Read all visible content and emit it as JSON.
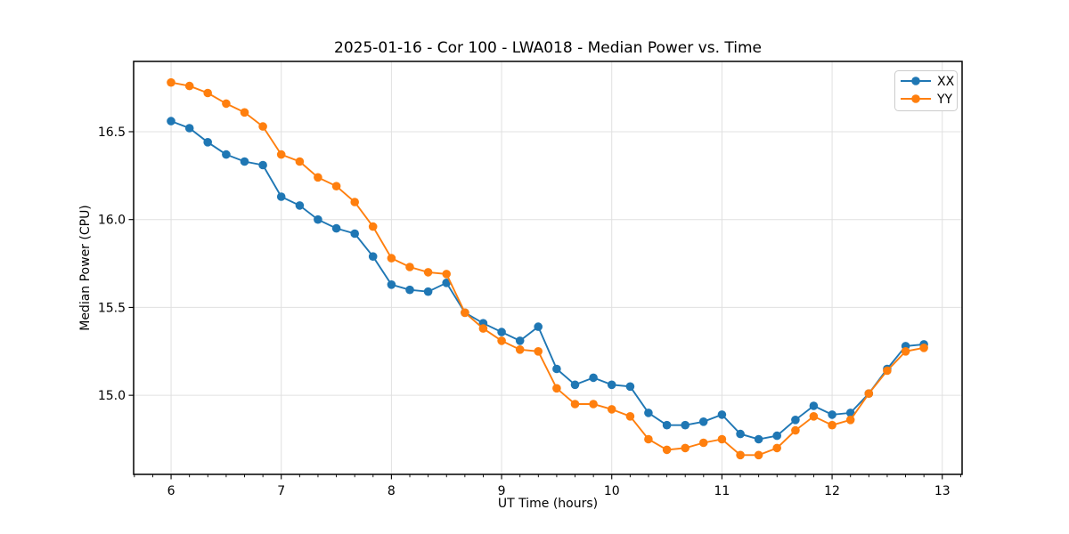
{
  "chart_data": {
    "type": "line",
    "title": "2025-01-16 - Cor 100 - LWA018 - Median Power vs. Time",
    "xlabel": "UT Time (hours)",
    "ylabel": "Median Power (CPU)",
    "xlim": [
      5.66,
      13.18
    ],
    "ylim": [
      14.55,
      16.9
    ],
    "xticks": [
      6,
      7,
      8,
      9,
      10,
      11,
      12,
      13
    ],
    "xtick_labels": [
      "6",
      "7",
      "8",
      "9",
      "10",
      "11",
      "12",
      "13"
    ],
    "yticks": [
      15.0,
      15.5,
      16.0,
      16.5
    ],
    "ytick_labels": [
      "15.0",
      "15.5",
      "16.0",
      "16.5"
    ],
    "grid": true,
    "minor_tick_interval_x": 0.16667,
    "legend_position": "upper right",
    "x": [
      6.0,
      6.167,
      6.333,
      6.5,
      6.667,
      6.833,
      7.0,
      7.167,
      7.333,
      7.5,
      7.667,
      7.833,
      8.0,
      8.167,
      8.333,
      8.5,
      8.667,
      8.833,
      9.0,
      9.167,
      9.333,
      9.5,
      9.667,
      9.833,
      10.0,
      10.167,
      10.333,
      10.5,
      10.667,
      10.833,
      11.0,
      11.167,
      11.333,
      11.5,
      11.667,
      11.833,
      12.0,
      12.167,
      12.333,
      12.5,
      12.667,
      12.833
    ],
    "series": [
      {
        "name": "XX",
        "color": "#1f77b4",
        "marker": "circle",
        "values": [
          16.56,
          16.52,
          16.44,
          16.37,
          16.33,
          16.31,
          16.13,
          16.08,
          16.0,
          15.95,
          15.92,
          15.79,
          15.63,
          15.6,
          15.59,
          15.64,
          15.47,
          15.41,
          15.36,
          15.31,
          15.39,
          15.15,
          15.06,
          15.1,
          15.06,
          15.05,
          14.9,
          14.83,
          14.83,
          14.85,
          14.89,
          14.78,
          14.75,
          14.77,
          14.86,
          14.94,
          14.89,
          14.9,
          15.01,
          15.15,
          15.28,
          15.29
        ]
      },
      {
        "name": "YY",
        "color": "#ff7f0e",
        "marker": "circle",
        "values": [
          16.78,
          16.76,
          16.72,
          16.66,
          16.61,
          16.53,
          16.37,
          16.33,
          16.24,
          16.19,
          16.1,
          15.96,
          15.78,
          15.73,
          15.7,
          15.69,
          15.47,
          15.38,
          15.31,
          15.26,
          15.25,
          15.04,
          14.95,
          14.95,
          14.92,
          14.88,
          14.75,
          14.69,
          14.7,
          14.73,
          14.75,
          14.66,
          14.66,
          14.7,
          14.8,
          14.88,
          14.83,
          14.86,
          15.01,
          15.14,
          15.25,
          15.27
        ]
      }
    ],
    "colors": {
      "grid": "#e0e0e0",
      "spine": "#000000",
      "text": "#000000"
    }
  }
}
